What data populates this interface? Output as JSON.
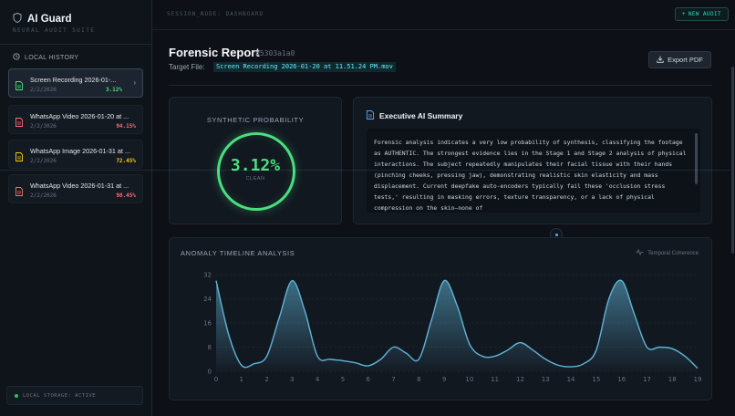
{
  "app": {
    "title": "AI Guard",
    "subtitle": "NEURAL AUDIT SUITE"
  },
  "sidebar": {
    "history_header": "LOCAL HISTORY",
    "items": [
      {
        "name": "Screen Recording 2026-01-...",
        "date": "2/2/2026",
        "pct": "3.12%",
        "color": "#4ade80",
        "icon_color": "#4ade80",
        "active": true
      },
      {
        "name": "WhatsApp Video 2026-01-20 at ...",
        "date": "2/2/2026",
        "pct": "94.15%",
        "color": "#f87171",
        "icon_color": "#f87171",
        "active": false
      },
      {
        "name": "WhatsApp Image 2026-01-31 at ...",
        "date": "2/2/2026",
        "pct": "72.45%",
        "color": "#facc15",
        "icon_color": "#facc15",
        "active": false
      },
      {
        "name": "WhatsApp Video 2026-01-31 at ...",
        "date": "2/2/2026",
        "pct": "98.45%",
        "color": "#f87171",
        "icon_color": "#f87171",
        "active": false
      }
    ],
    "storage": "LOCAL STORAGE: ACTIVE"
  },
  "topbar": {
    "session": "SESSION_NODE: DASHBOARD",
    "new_audit": "NEW AUDIT"
  },
  "report": {
    "title": "Forensic Report",
    "id": "#5303a1a0",
    "target_label": "Target File:",
    "target_file": "Screen Recording 2026-01-20 at 11.51.24 PM.mov",
    "export": "Export PDF"
  },
  "probability": {
    "label": "SYNTHETIC PROBABILITY",
    "value": "3.12%",
    "status": "CLEAN"
  },
  "summary": {
    "title": "Executive AI Summary",
    "text": "Forensic analysis indicates a very low probability of synthesis, classifying the footage as AUTHENTIC. The strongest evidence lies in the Stage 1 and Stage 2 analysis of physical interactions. The subject repeatedly manipulates their facial tissue with their hands (pinching cheeks, pressing jaw), demonstrating realistic skin elasticity and mass displacement. Current deepfake auto-encoders typically fail these 'occlusion stress tests,' resulting in masking errors, texture transparency, or a lack of physical compression on the skin—none of"
  },
  "chart": {
    "title": "ANOMALY TIMELINE ANALYSIS",
    "legend": "Temporal Coherence"
  },
  "chart_data": {
    "type": "area",
    "title": "ANOMALY TIMELINE ANALYSIS",
    "x": [
      0,
      0.5,
      1,
      1.5,
      2,
      2.5,
      3,
      3.5,
      4,
      4.5,
      5,
      5.5,
      6,
      6.5,
      7,
      7.5,
      8,
      8.5,
      9,
      9.5,
      10,
      10.5,
      11,
      11.5,
      12,
      12.5,
      13,
      13.5,
      14,
      14.5,
      15,
      15.5,
      16,
      16.5,
      17,
      17.5,
      18,
      18.5,
      19
    ],
    "y": [
      30,
      12,
      2,
      2.5,
      5,
      18,
      30,
      20,
      5,
      4,
      3.5,
      2.8,
      1.8,
      4,
      8,
      6,
      4,
      17,
      30,
      22,
      9,
      5,
      5,
      7,
      9.5,
      7,
      4,
      2,
      1.5,
      2.5,
      7,
      24,
      30,
      19,
      8,
      8,
      7.5,
      5,
      1
    ],
    "xlim": [
      0,
      19
    ],
    "ylim": [
      0,
      32
    ],
    "xticks": [
      0,
      1,
      2,
      3,
      4,
      5,
      6,
      7,
      8,
      9,
      10,
      11,
      12,
      13,
      14,
      15,
      16,
      17,
      18,
      19
    ],
    "yticks": [
      0,
      8,
      16,
      24,
      32
    ],
    "series": [
      {
        "name": "Temporal Coherence",
        "color": "#60b4d8"
      }
    ],
    "grid": true
  }
}
